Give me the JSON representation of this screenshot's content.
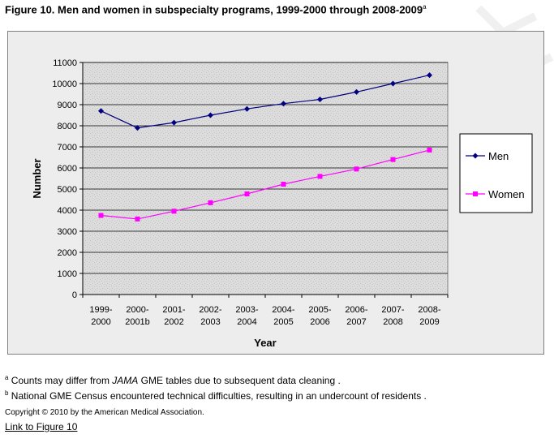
{
  "figure": {
    "title": "Figure 10. Men and women in subspecialty programs, 1999-2000 through 2008-2009",
    "title_sup": "a"
  },
  "chart_data": {
    "type": "line",
    "xlabel": "Year",
    "ylabel": "Number",
    "ylim": [
      0,
      11000
    ],
    "yticks": [
      0,
      1000,
      2000,
      3000,
      4000,
      5000,
      6000,
      7000,
      8000,
      9000,
      10000,
      11000
    ],
    "grid": true,
    "legend_position": "right",
    "categories": [
      [
        "1999-",
        "2000"
      ],
      [
        "2000-",
        "2001b"
      ],
      [
        "2001-",
        "2002"
      ],
      [
        "2002-",
        "2003"
      ],
      [
        "2003-",
        "2004"
      ],
      [
        "2004-",
        "2005"
      ],
      [
        "2005-",
        "2006"
      ],
      [
        "2006-",
        "2007"
      ],
      [
        "2007-",
        "2008"
      ],
      [
        "2008-",
        "2009"
      ]
    ],
    "series": [
      {
        "name": "Men",
        "color": "#000080",
        "marker": "diamond",
        "values": [
          8700,
          7900,
          8150,
          8500,
          8800,
          9050,
          9250,
          9600,
          10000,
          10400
        ]
      },
      {
        "name": "Women",
        "color": "#ff00ff",
        "marker": "square",
        "values": [
          3750,
          3580,
          3950,
          4350,
          4770,
          5230,
          5600,
          5950,
          6400,
          6850
        ]
      }
    ],
    "colors": {
      "plot_bg": "#dcdcdc",
      "grid": "#000000"
    }
  },
  "footnotes": [
    {
      "sup": "a",
      "pre": "Counts may differ from ",
      "italic": "JAMA",
      "post": " GME tables due to subsequent data cleaning ."
    },
    {
      "sup": "b",
      "pre": "National GME Census encountered technical difficulties, resulting in an undercount of residents .",
      "italic": "",
      "post": ""
    }
  ],
  "copyright": "Copyright © 2010 by the American Medical Association.",
  "link_text": "Link to Figure 10"
}
